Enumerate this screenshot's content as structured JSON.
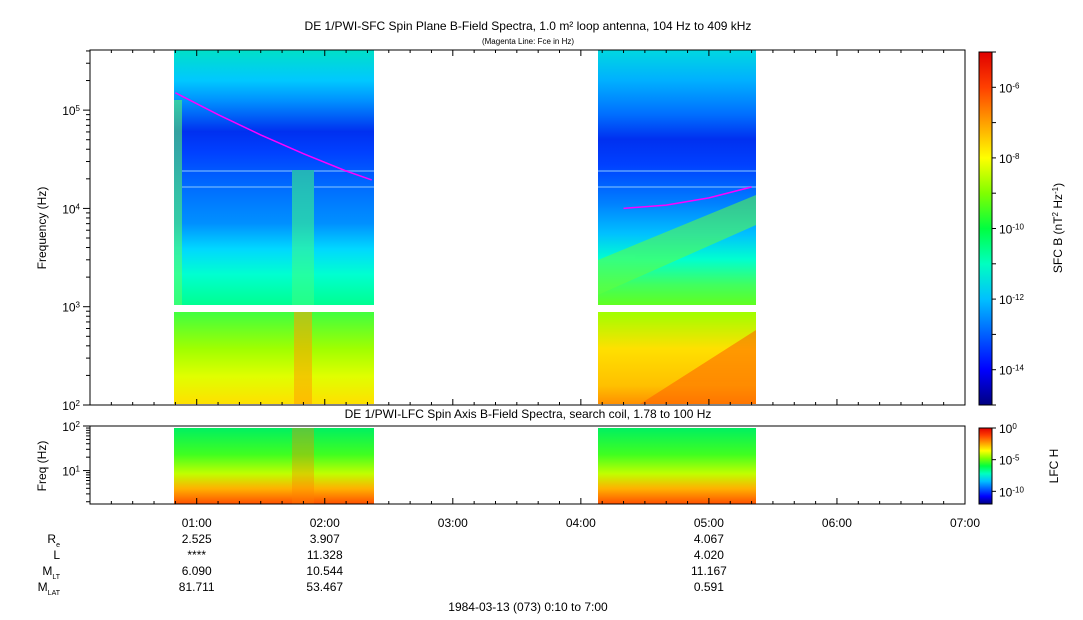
{
  "colors": {
    "fce_line": "#ff00ff",
    "colormap": [
      "#000080",
      "#0000ff",
      "#0060ff",
      "#00c0ff",
      "#00ffc0",
      "#00ff40",
      "#80ff00",
      "#ffff00",
      "#ffa000",
      "#ff4000",
      "#e00000"
    ]
  },
  "chart_data": [
    {
      "type": "heatmap",
      "title": "DE 1/PWI-SFC  Spin Plane B-Field Spectra, 1.0 m² loop antenna, 104 Hz to 409 kHz",
      "subtitle": "(Magenta Line: Fce in Hz)",
      "ylabel": "Frequency (Hz)",
      "yscale": "log",
      "ylim": [
        100,
        409000
      ],
      "xlim": [
        "00:10",
        "07:00"
      ],
      "y_ticks": [
        {
          "value": 100,
          "label": "10",
          "exp": "2"
        },
        {
          "value": 1000,
          "label": "10",
          "exp": "3"
        },
        {
          "value": 10000,
          "label": "10",
          "exp": "4"
        },
        {
          "value": 100000,
          "label": "10",
          "exp": "5"
        }
      ],
      "data_intervals": [
        [
          "00:50",
          "02:23"
        ],
        [
          "04:16",
          "05:22"
        ]
      ],
      "fce_series": [
        {
          "x": [
            "00:50",
            "01:10",
            "01:30",
            "01:50",
            "02:10",
            "02:22"
          ],
          "y": [
            150000,
            90000,
            56000,
            36000,
            24000,
            19500
          ]
        },
        {
          "x": [
            "04:20",
            "04:40",
            "05:00",
            "05:20"
          ],
          "y": [
            10000,
            10800,
            12800,
            16500
          ]
        }
      ],
      "colorbar": {
        "label": "SFC B (nT",
        "label_exp1": "2",
        "label_mid": " Hz",
        "label_exp2": "-1",
        "label_end": ")",
        "scale": "log",
        "range": [
          1e-15,
          1e-05
        ],
        "ticks": [
          {
            "value": 1e-06,
            "label": "10",
            "exp": "-6"
          },
          {
            "value": 1e-08,
            "label": "10",
            "exp": "-8"
          },
          {
            "value": 1e-10,
            "label": "10",
            "exp": "-10"
          },
          {
            "value": 1e-12,
            "label": "10",
            "exp": "-12"
          },
          {
            "value": 1e-14,
            "label": "10",
            "exp": "-14"
          }
        ]
      }
    },
    {
      "type": "heatmap",
      "title": "DE 1/PWI-LFC  Spin Axis B-Field Spectra, search coil, 1.78 to 100 Hz",
      "ylabel": "Freq (Hz)",
      "yscale": "log",
      "ylim": [
        1.78,
        100
      ],
      "xlim": [
        "00:10",
        "07:00"
      ],
      "y_ticks": [
        {
          "value": 10,
          "label": "10",
          "exp": "1"
        },
        {
          "value": 100,
          "label": "10",
          "exp": "2"
        }
      ],
      "data_intervals": [
        [
          "00:50",
          "02:23"
        ],
        [
          "04:16",
          "05:22"
        ]
      ],
      "colorbar": {
        "label": "LFC H",
        "scale": "log",
        "range": [
          1e-12,
          1
        ],
        "ticks": [
          {
            "value": 1,
            "label": "10",
            "exp": "0"
          },
          {
            "value": 1e-05,
            "label": "10",
            "exp": "-5"
          },
          {
            "value": 1e-10,
            "label": "10",
            "exp": "-10"
          }
        ]
      }
    }
  ],
  "x_ticks": [
    "01:00",
    "02:00",
    "03:00",
    "04:00",
    "05:00",
    "06:00",
    "07:00"
  ],
  "ephemeris": {
    "rows": [
      {
        "label": "R",
        "sub": "e",
        "values": [
          "2.525",
          "3.907",
          "",
          "",
          "4.067",
          "",
          ""
        ]
      },
      {
        "label": "L",
        "sub": "",
        "values": [
          "****",
          "11.328",
          "",
          "",
          "4.020",
          "",
          ""
        ]
      },
      {
        "label": "M",
        "sub": "LT",
        "values": [
          "6.090",
          "10.544",
          "",
          "",
          "11.167",
          "",
          ""
        ]
      },
      {
        "label": "M",
        "sub": "LAT",
        "values": [
          "81.711",
          "53.467",
          "",
          "",
          "0.591",
          "",
          ""
        ]
      }
    ]
  },
  "footer": "1984-03-13 (073) 0:10 to 7:00"
}
